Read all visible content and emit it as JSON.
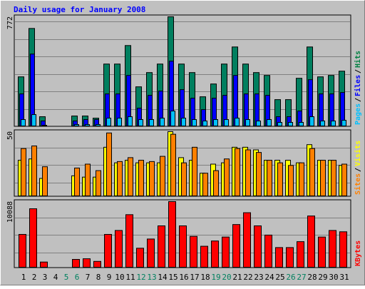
{
  "chart_data": {
    "type": "bar",
    "title": "Daily usage for January 2008",
    "categories": [
      "1",
      "2",
      "3",
      "4",
      "5",
      "6",
      "7",
      "8",
      "9",
      "10",
      "11",
      "12",
      "13",
      "14",
      "15",
      "16",
      "17",
      "18",
      "19",
      "20",
      "21",
      "22",
      "23",
      "24",
      "25",
      "26",
      "27",
      "28",
      "29",
      "30",
      "31"
    ],
    "weekend_days": [
      5,
      6,
      12,
      13,
      19,
      20,
      26,
      27
    ],
    "panels": [
      {
        "name": "hits-files-pages",
        "ylim": [
          0,
          772
        ],
        "max_label": "772",
        "legend": [
          "Pages",
          "/",
          "Files",
          "/",
          "Hits"
        ],
        "legend_colors": [
          "#00c0ff",
          "#000000",
          "#0000ff",
          "#000000",
          "#008040"
        ],
        "series": [
          {
            "name": "Hits",
            "color": "#007f5f",
            "values": [
              350,
              690,
              70,
              0,
              0,
              75,
              75,
              60,
              440,
              440,
              570,
              280,
              380,
              440,
              772,
              440,
              380,
              210,
              300,
              440,
              560,
              440,
              380,
              360,
              190,
              190,
              340,
              560,
              350,
              360,
              390
            ]
          },
          {
            "name": "Files",
            "color": "#0000ff",
            "values": [
              230,
              510,
              40,
              0,
              0,
              40,
              50,
              50,
              230,
              230,
              360,
              130,
              220,
              250,
              460,
              260,
              200,
              120,
              200,
              220,
              360,
              230,
              230,
              220,
              70,
              70,
              110,
              330,
              230,
              230,
              240
            ]
          },
          {
            "name": "Pages",
            "color": "#00bfff",
            "values": [
              50,
              85,
              10,
              0,
              0,
              15,
              15,
              15,
              60,
              60,
              70,
              50,
              50,
              60,
              110,
              60,
              50,
              40,
              50,
              50,
              60,
              50,
              40,
              50,
              30,
              30,
              30,
              70,
              40,
              40,
              45
            ]
          }
        ]
      },
      {
        "name": "visits-sites",
        "ylim": [
          0,
          50
        ],
        "max_label": "50",
        "legend": [
          "Sites",
          "/",
          "Visits"
        ],
        "legend_colors": [
          "#ff8000",
          "#000000",
          "#ffff00"
        ],
        "series": [
          {
            "name": "Visits",
            "color": "#ffff00",
            "values": [
              28,
              29,
              14,
              0,
              0,
              16,
              15,
              15,
              38,
              26,
              28,
              26,
              26,
              26,
              50,
              30,
              28,
              18,
              25,
              26,
              38,
              38,
              36,
              28,
              28,
              28,
              26,
              40,
              28,
              28,
              24
            ]
          },
          {
            "name": "Sites",
            "color": "#ff8000",
            "values": [
              37,
              39,
              23,
              0,
              0,
              22,
              25,
              20,
              49,
              27,
              30,
              28,
              27,
              31,
              48,
              26,
              38,
              18,
              20,
              29,
              37,
              36,
              34,
              28,
              26,
              24,
              26,
              37,
              28,
              28,
              25
            ]
          }
        ]
      },
      {
        "name": "kbytes",
        "ylim": [
          0,
          10088
        ],
        "max_label": "10088",
        "legend": [
          "KBytes"
        ],
        "legend_colors": [
          "#ff0000"
        ],
        "series": [
          {
            "name": "KBytes",
            "color": "#ff0000",
            "values": [
              5100,
              9000,
              900,
              0,
              0,
              1300,
              1400,
              1000,
              5100,
              5700,
              8100,
              3000,
              4400,
              6400,
              10088,
              6400,
              4800,
              3300,
              4100,
              4700,
              6600,
              8400,
              6400,
              5000,
              3100,
              3100,
              4000,
              7900,
              4700,
              5700,
              5500
            ]
          }
        ]
      }
    ]
  }
}
